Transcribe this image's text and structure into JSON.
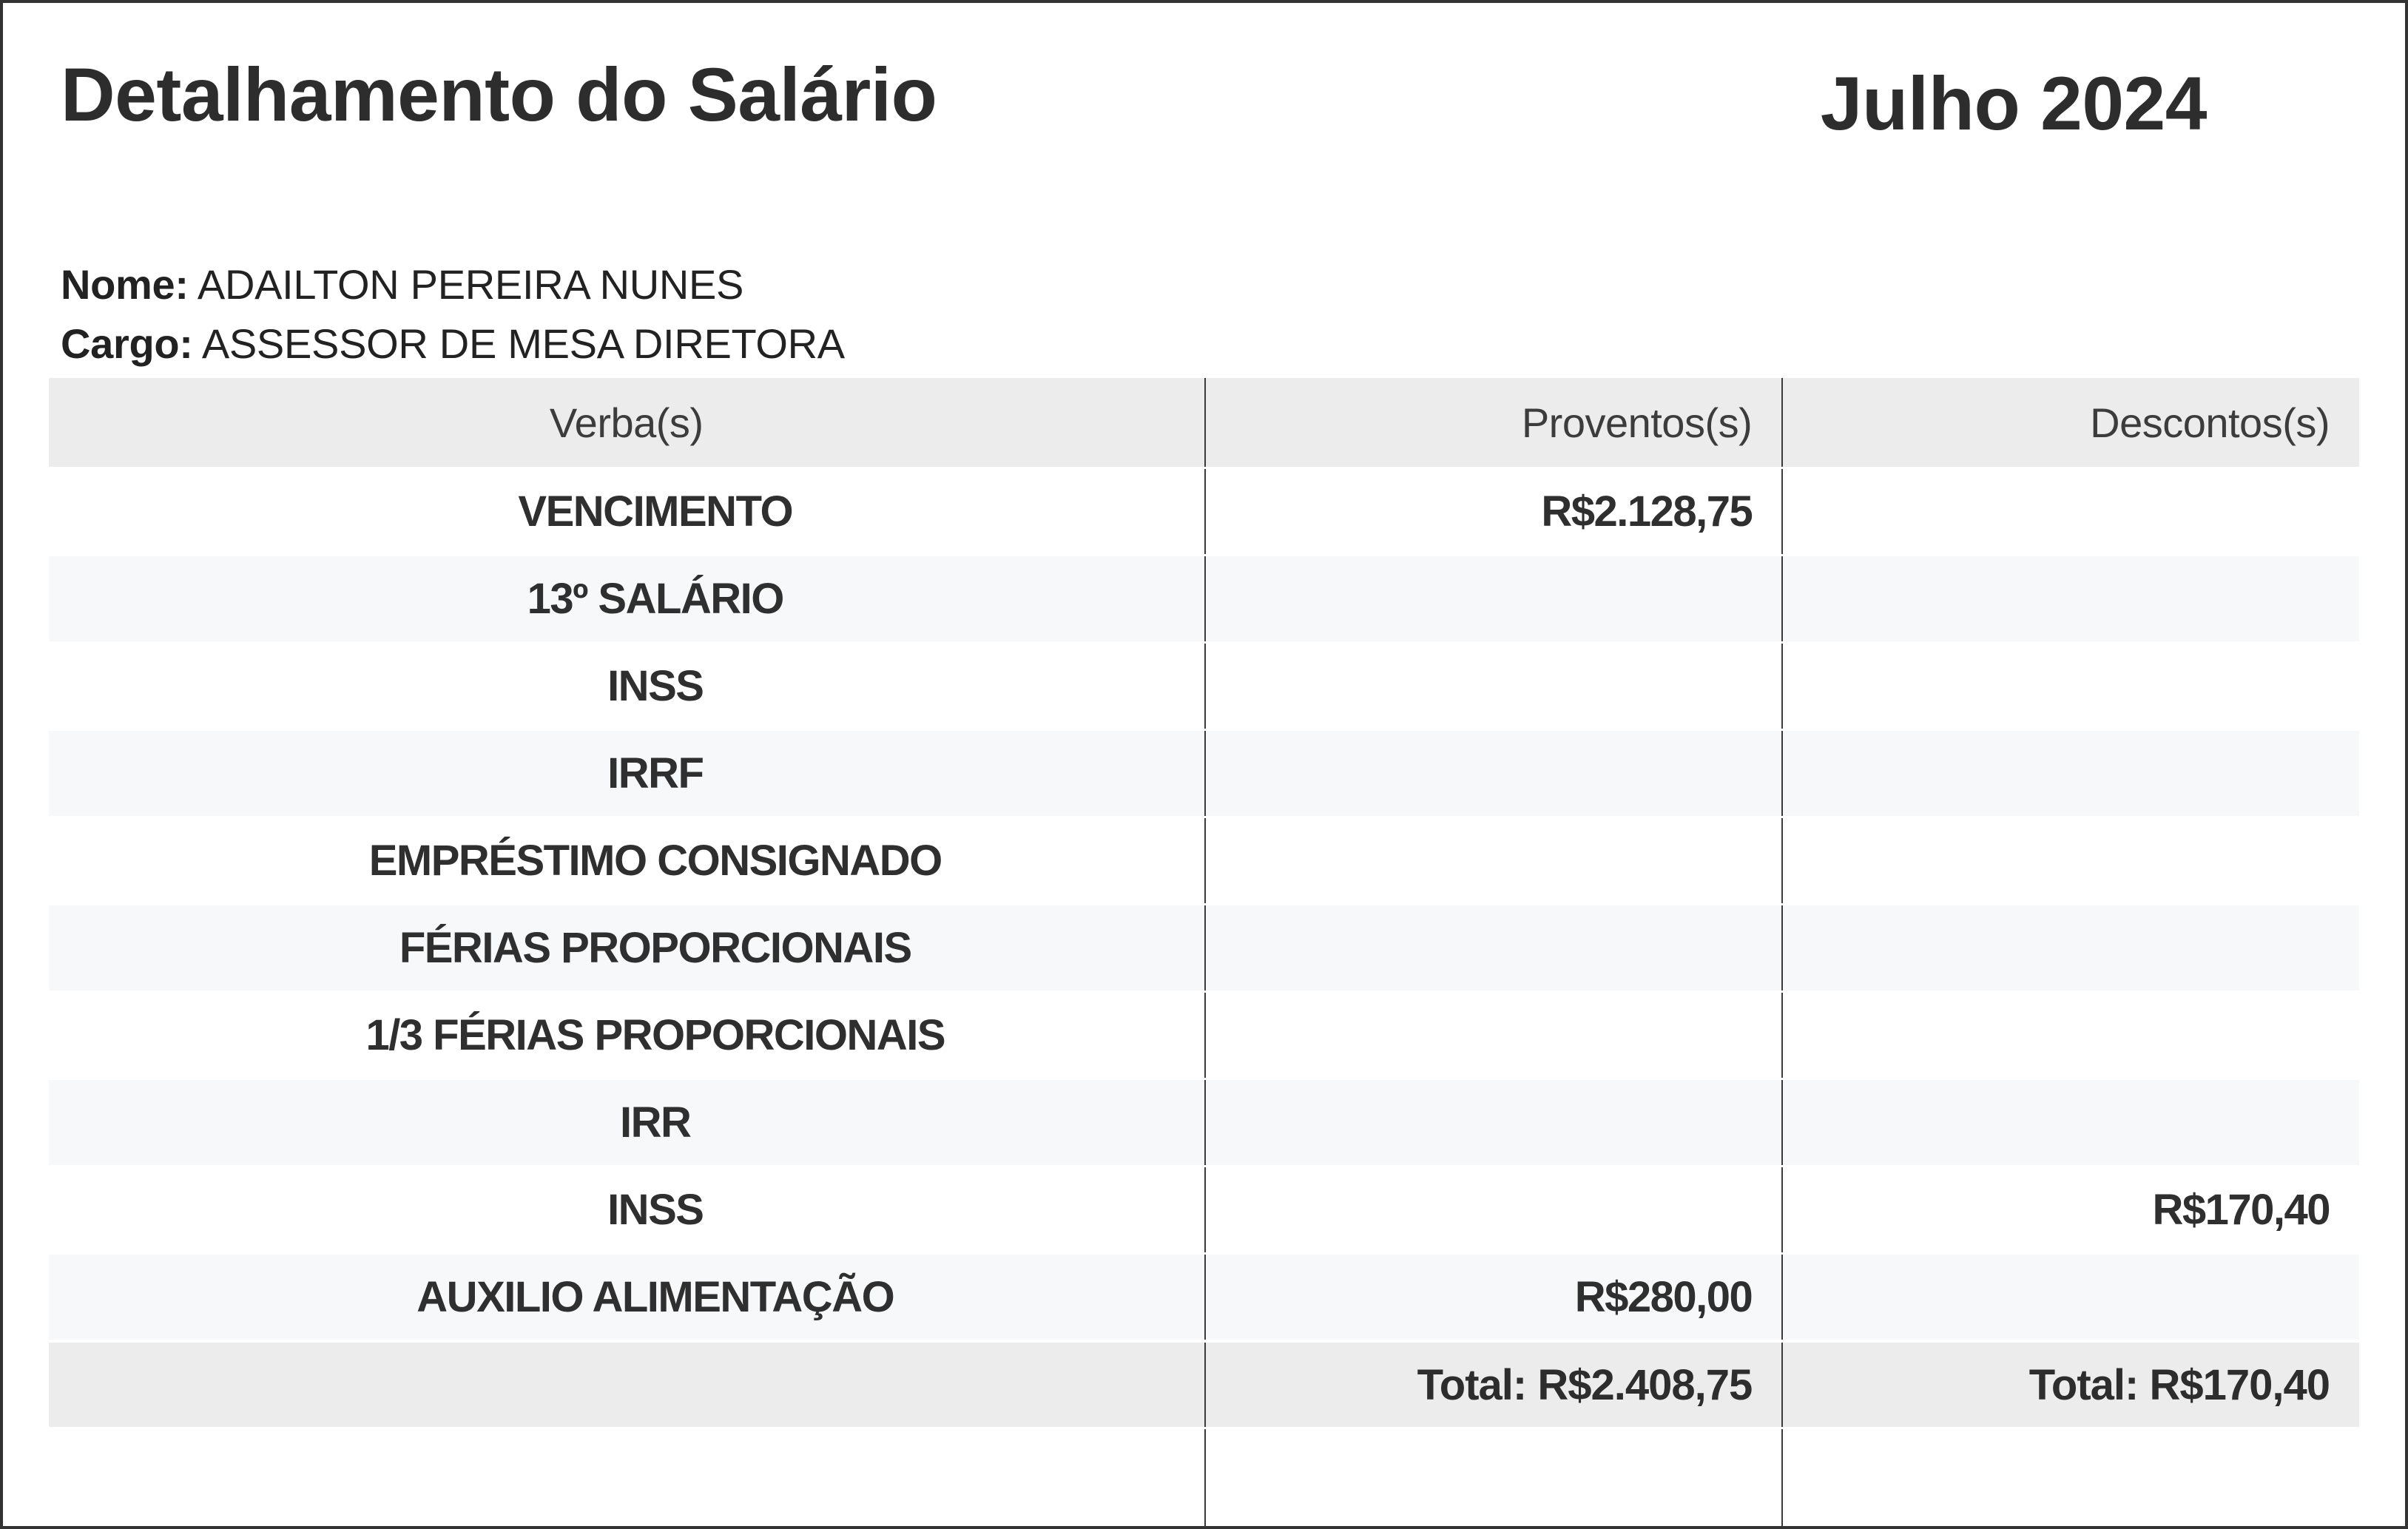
{
  "title": "Detalhamento do Salário",
  "period": "Julho 2024",
  "employee": {
    "name_label": "Nome:",
    "name": "ADAILTON PEREIRA NUNES",
    "role_label": "Cargo:",
    "role": "ASSESSOR DE MESA DIRETORA"
  },
  "table": {
    "columns": [
      "Verba(s)",
      "Proventos(s)",
      "Descontos(s)"
    ],
    "rows": [
      {
        "verba": "VENCIMENTO",
        "provento": "R$2.128,75",
        "desconto": ""
      },
      {
        "verba": "13º SALÁRIO",
        "provento": "",
        "desconto": ""
      },
      {
        "verba": "INSS",
        "provento": "",
        "desconto": ""
      },
      {
        "verba": "IRRF",
        "provento": "",
        "desconto": ""
      },
      {
        "verba": "EMPRÉSTIMO CONSIGNADO",
        "provento": "",
        "desconto": ""
      },
      {
        "verba": "FÉRIAS PROPORCIONAIS",
        "provento": "",
        "desconto": ""
      },
      {
        "verba": "1/3 FÉRIAS PROPORCIONAIS",
        "provento": "",
        "desconto": ""
      },
      {
        "verba": "IRR",
        "provento": "",
        "desconto": ""
      },
      {
        "verba": "INSS",
        "provento": "",
        "desconto": "R$170,40"
      },
      {
        "verba": "AUXILIO ALIMENTAÇÃO",
        "provento": "R$280,00",
        "desconto": ""
      }
    ],
    "totals": {
      "proventos": "Total: R$2.408,75",
      "descontos": "Total: R$170,40"
    }
  },
  "colors": {
    "page_border": "#333333",
    "header_bg": "#ececec",
    "row_stripe_bg": "#f7f8f9",
    "total_row_bg": "#ececec",
    "column_divider": "#3a3a3a",
    "text": "#2f2f2f"
  }
}
